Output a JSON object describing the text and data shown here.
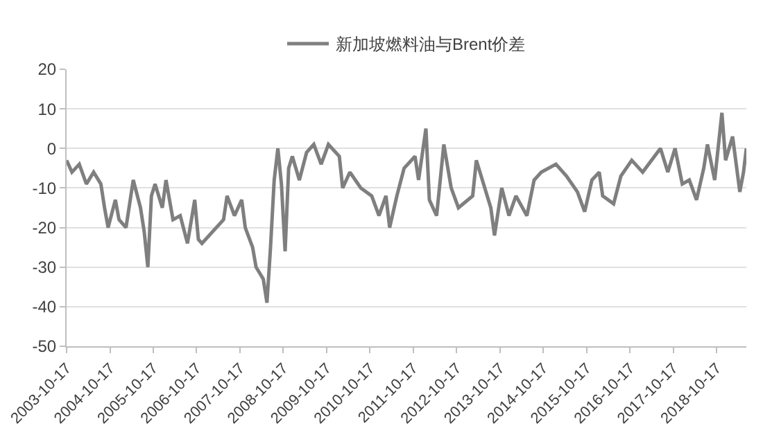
{
  "chart_data": {
    "type": "line",
    "x": [
      "2003-10-17",
      "2003-12",
      "2004-02",
      "2004-04",
      "2004-06",
      "2004-08",
      "2004-09",
      "2004-10",
      "2004-12",
      "2005-01",
      "2005-03",
      "2005-05",
      "2005-07",
      "2005-08",
      "2005-09",
      "2005-10",
      "2005-11",
      "2006-01",
      "2006-02",
      "2006-04",
      "2006-06",
      "2006-08",
      "2006-10",
      "2006-11",
      "2006-12",
      "2007-06",
      "2007-07",
      "2007-09",
      "2007-11",
      "2007-12",
      "2008-02",
      "2008-03",
      "2008-05",
      "2008-06",
      "2008-07",
      "2008-08",
      "2008-09",
      "2008-10",
      "2008-11",
      "2008-12",
      "2009-01",
      "2009-03",
      "2009-05",
      "2009-07",
      "2009-09",
      "2009-11",
      "2010-02",
      "2010-03",
      "2010-05",
      "2010-08",
      "2010-11",
      "2011-01",
      "2011-03",
      "2011-04",
      "2011-06",
      "2011-08",
      "2011-11",
      "2011-12",
      "2012-02",
      "2012-03",
      "2012-05",
      "2012-07",
      "2012-09",
      "2012-11",
      "2013-03",
      "2013-04",
      "2013-06",
      "2013-08",
      "2013-09",
      "2013-11",
      "2014-01",
      "2014-03",
      "2014-06",
      "2014-08",
      "2014-10",
      "2015-02",
      "2015-05",
      "2015-08",
      "2015-10",
      "2015-12",
      "2016-02",
      "2016-03",
      "2016-06",
      "2016-08",
      "2016-11",
      "2017-02",
      "2017-07",
      "2017-09",
      "2017-11",
      "2018-01",
      "2018-03",
      "2018-05",
      "2018-07",
      "2018-08",
      "2018-10",
      "2018-12",
      "2019-01",
      "2019-03",
      "2019-05",
      "2019-06",
      "2019-06-25"
    ],
    "series": [
      {
        "name": "新加坡燃料油与Brent价差",
        "color": "#7f7f7f",
        "values": [
          -3,
          -6,
          -4,
          -9,
          -6,
          -9,
          -15,
          -20,
          -13,
          -18,
          -20,
          -8,
          -15,
          -21,
          -30,
          -12,
          -9,
          -15,
          -8,
          -18,
          -17,
          -24,
          -13,
          -23,
          -24,
          -18,
          -12,
          -17,
          -13,
          -20,
          -25,
          -30,
          -33,
          -39,
          -25,
          -8,
          0,
          -9,
          -26,
          -5,
          -2,
          -8,
          -1,
          1,
          -4,
          1,
          -2,
          -10,
          -6,
          -10,
          -12,
          -17,
          -12,
          -20,
          -12,
          -5,
          -2,
          -8,
          5,
          -13,
          -17,
          1,
          -10,
          -15,
          -12,
          -3,
          -9,
          -15,
          -22,
          -10,
          -17,
          -12,
          -17,
          -8,
          -6,
          -4,
          -7,
          -11,
          -16,
          -8,
          -6,
          -12,
          -14,
          -7,
          -3,
          -6,
          0,
          -6,
          0,
          -9,
          -8,
          -13,
          -5,
          1,
          -8,
          9,
          -3,
          3,
          -11,
          -6,
          0
        ]
      }
    ],
    "xlim": [
      "2003-10-17",
      "2019-06-25"
    ],
    "xticks": [
      "2003-10-17",
      "2004-10-17",
      "2005-10-17",
      "2006-10-17",
      "2007-10-17",
      "2008-10-17",
      "2009-10-17",
      "2010-10-17",
      "2011-10-17",
      "2012-10-17",
      "2013-10-17",
      "2014-10-17",
      "2015-10-17",
      "2016-10-17",
      "2017-10-17",
      "2018-10-17"
    ],
    "ylim": [
      -50,
      20
    ],
    "yticks": [
      -50,
      -40,
      -30,
      -20,
      -10,
      0,
      10,
      20
    ],
    "grid": "y",
    "legend": "top",
    "marker": "none",
    "line_style": "solid"
  }
}
